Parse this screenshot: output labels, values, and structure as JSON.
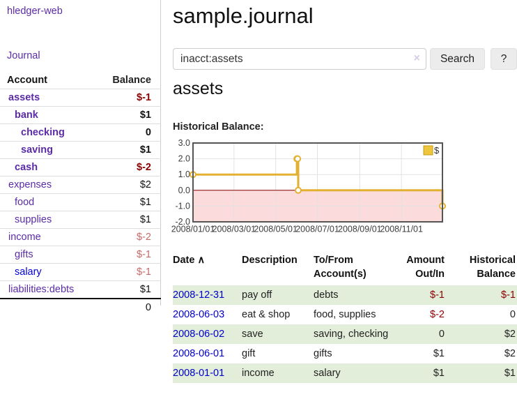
{
  "brand": {
    "app_name": "hledger-web"
  },
  "sidebar": {
    "journal_link": "Journal",
    "account_header": "Account",
    "balance_header": "Balance",
    "accounts": [
      {
        "name": "assets",
        "level": 0,
        "balance": "$-1",
        "bold": true,
        "balance_color": "negative"
      },
      {
        "name": "bank",
        "level": 1,
        "balance": "$1",
        "bold": true,
        "balance_color": "positive"
      },
      {
        "name": "checking",
        "level": 2,
        "balance": "0",
        "bold": true,
        "balance_color": "positive"
      },
      {
        "name": "saving",
        "level": 2,
        "balance": "$1",
        "bold": true,
        "balance_color": "positive"
      },
      {
        "name": "cash",
        "level": 1,
        "balance": "$-2",
        "bold": true,
        "balance_color": "negative"
      },
      {
        "name": "expenses",
        "level": 0,
        "balance": "$2",
        "bold": false,
        "balance_color": "positive"
      },
      {
        "name": "food",
        "level": 1,
        "balance": "$1",
        "bold": false,
        "balance_color": "positive"
      },
      {
        "name": "supplies",
        "level": 1,
        "balance": "$1",
        "bold": false,
        "balance_color": "positive"
      },
      {
        "name": "income",
        "level": 0,
        "balance": "$-2",
        "bold": false,
        "balance_color": "negative-muted"
      },
      {
        "name": "gifts",
        "level": 1,
        "balance": "$-1",
        "bold": false,
        "balance_color": "negative-muted"
      },
      {
        "name": "salary",
        "level": 1,
        "balance": "$-1",
        "bold": false,
        "balance_color": "negative-muted",
        "name_color": "blue"
      },
      {
        "name": "liabilities:debts",
        "level": 0,
        "balance": "$1",
        "bold": false,
        "balance_color": "positive"
      }
    ],
    "total": "0"
  },
  "header": {
    "title": "sample.journal"
  },
  "search": {
    "value": "inacct:assets",
    "clear_icon": "×",
    "search_button": "Search",
    "help_button": "?"
  },
  "account_view": {
    "heading": "assets",
    "chart_title": "Historical Balance:"
  },
  "chart_data": {
    "type": "line",
    "step": true,
    "title": "Historical Balance:",
    "series": [
      {
        "name": "$",
        "points": [
          [
            "2008-01-01",
            1
          ],
          [
            "2008-06-01",
            2
          ],
          [
            "2008-06-02",
            2
          ],
          [
            "2008-06-03",
            0
          ],
          [
            "2008-12-31",
            -1
          ]
        ]
      }
    ],
    "x_range": [
      "2008-01-01",
      "2008-12-31"
    ],
    "ylim": [
      -2,
      3
    ],
    "y_tick_values": [
      3,
      2,
      1,
      0,
      -1,
      -2
    ],
    "y_tick_labels": [
      "3.0",
      "2.0",
      "1.0",
      "0.0",
      "-1.0",
      "-2.0"
    ],
    "x_tick_labels": [
      "2008/01/01",
      "2008/03/01",
      "2008/05/01",
      "2008/07/01",
      "2008/09/01",
      "2008/11/01"
    ],
    "grid": true,
    "legend": {
      "label": "$",
      "position": "top-right",
      "swatch_fill": "#eec63e",
      "swatch_border": "#c69b17"
    },
    "colors": {
      "line": "#e3b132",
      "marker_fill": "#ffffff",
      "negative_region": "#fbdbdb",
      "zero_line": "#8b0000",
      "border": "#555555",
      "gridline": "#e2e2e2"
    }
  },
  "register": {
    "columns": [
      {
        "lines": [
          "Date"
        ],
        "sort_indicator": "∧",
        "align": "left"
      },
      {
        "lines": [
          "Description"
        ],
        "align": "left"
      },
      {
        "lines": [
          "To/From",
          "Account(s)"
        ],
        "align": "left"
      },
      {
        "lines": [
          "Amount",
          "Out/In"
        ],
        "align": "right"
      },
      {
        "lines": [
          "Historical",
          "Balance"
        ],
        "align": "right"
      }
    ],
    "rows": [
      {
        "date": "2008-12-31",
        "description": "pay off",
        "accounts": "debts",
        "amount": "$-1",
        "amount_negative": true,
        "balance": "$-1",
        "balance_negative": true
      },
      {
        "date": "2008-06-03",
        "description": "eat & shop",
        "accounts": "food, supplies",
        "amount": "$-2",
        "amount_negative": true,
        "balance": "0",
        "balance_negative": false
      },
      {
        "date": "2008-06-02",
        "description": "save",
        "accounts": "saving, checking",
        "amount": "0",
        "amount_negative": false,
        "balance": "$2",
        "balance_negative": false
      },
      {
        "date": "2008-06-01",
        "description": "gift",
        "accounts": "gifts",
        "amount": "$1",
        "amount_negative": false,
        "balance": "$2",
        "balance_negative": false
      },
      {
        "date": "2008-01-01",
        "description": "income",
        "accounts": "salary",
        "amount": "$1",
        "amount_negative": false,
        "balance": "$1",
        "balance_negative": false
      }
    ]
  }
}
